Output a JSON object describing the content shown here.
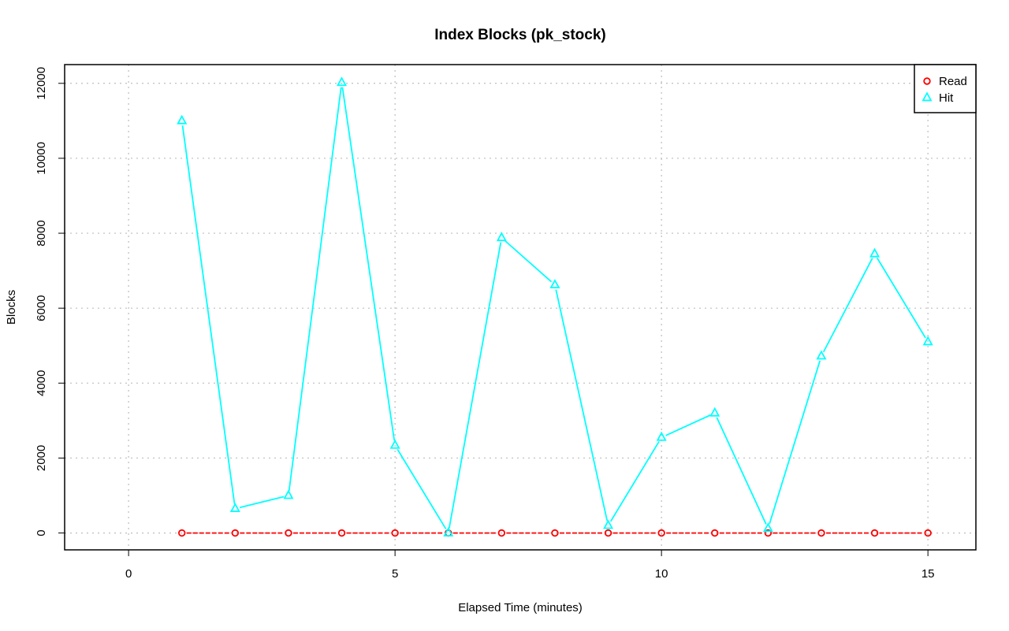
{
  "chart_data": {
    "type": "line",
    "title": "Index Blocks (pk_stock)",
    "xlabel": "Elapsed Time (minutes)",
    "ylabel": "Blocks",
    "x": [
      1,
      2,
      3,
      4,
      5,
      6,
      7,
      8,
      9,
      10,
      11,
      12,
      13,
      14,
      15
    ],
    "xlim": [
      -1.2,
      15.9
    ],
    "ylim": [
      -450,
      12500
    ],
    "xticks": [
      0,
      5,
      10,
      15
    ],
    "yticks": [
      0,
      2000,
      4000,
      6000,
      8000,
      10000,
      12000
    ],
    "grid": true,
    "legend_position": "top-right",
    "series": [
      {
        "name": "Read",
        "color": "#ff0000",
        "marker": "circle",
        "line_style": "dashed",
        "values": [
          0,
          0,
          0,
          0,
          0,
          0,
          0,
          0,
          0,
          0,
          0,
          0,
          0,
          0,
          0
        ]
      },
      {
        "name": "Hit",
        "color": "#00ffff",
        "marker": "triangle",
        "line_style": "solid",
        "values": [
          11000,
          650,
          1000,
          12020,
          2340,
          0,
          7880,
          6620,
          200,
          2550,
          3200,
          120,
          4720,
          7450,
          5100
        ]
      }
    ]
  }
}
